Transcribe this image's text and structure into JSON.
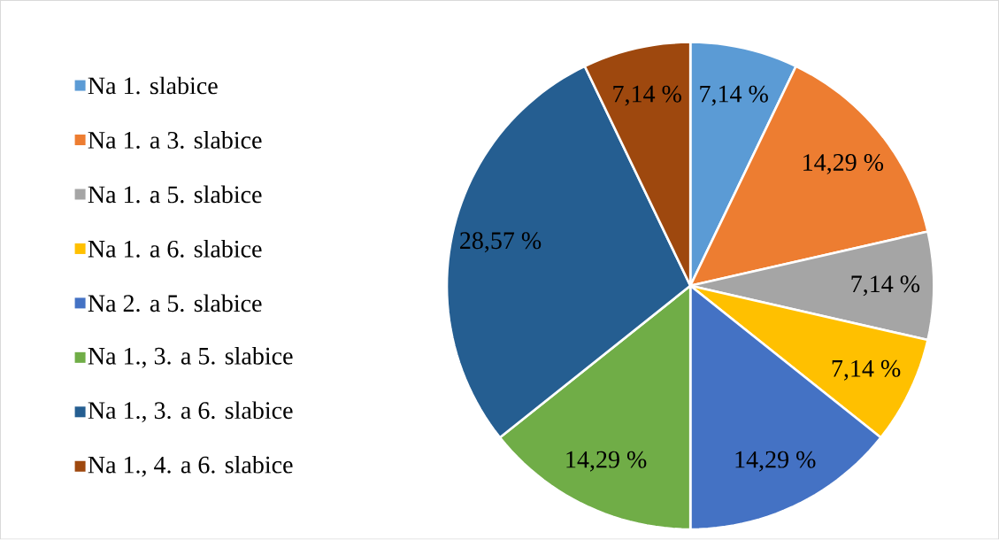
{
  "chart_data": {
    "type": "pie",
    "categories": [
      "Na 1. slabice",
      "Na 1. a 3. slabice",
      "Na 1. a 5. slabice",
      "Na 1. a 6. slabice",
      "Na 2. a 5. slabice",
      "Na 1., 3. a 5. slabice",
      "Na 1., 3. a 6. slabice",
      "Na 1., 4. a 6. slabice"
    ],
    "values": [
      7.14,
      14.29,
      7.14,
      7.14,
      14.29,
      14.29,
      28.57,
      7.14
    ],
    "value_labels": [
      "7,14 %",
      "14,29 %",
      "7,14 %",
      "7,14 %",
      "14,29 %",
      "14,29 %",
      "28,57 %",
      "7,14 %"
    ],
    "colors": [
      "#5b9bd5",
      "#ed7d31",
      "#a5a5a5",
      "#ffc000",
      "#4472c4",
      "#70ad47",
      "#255e91",
      "#9e480e"
    ],
    "legend": "left"
  }
}
